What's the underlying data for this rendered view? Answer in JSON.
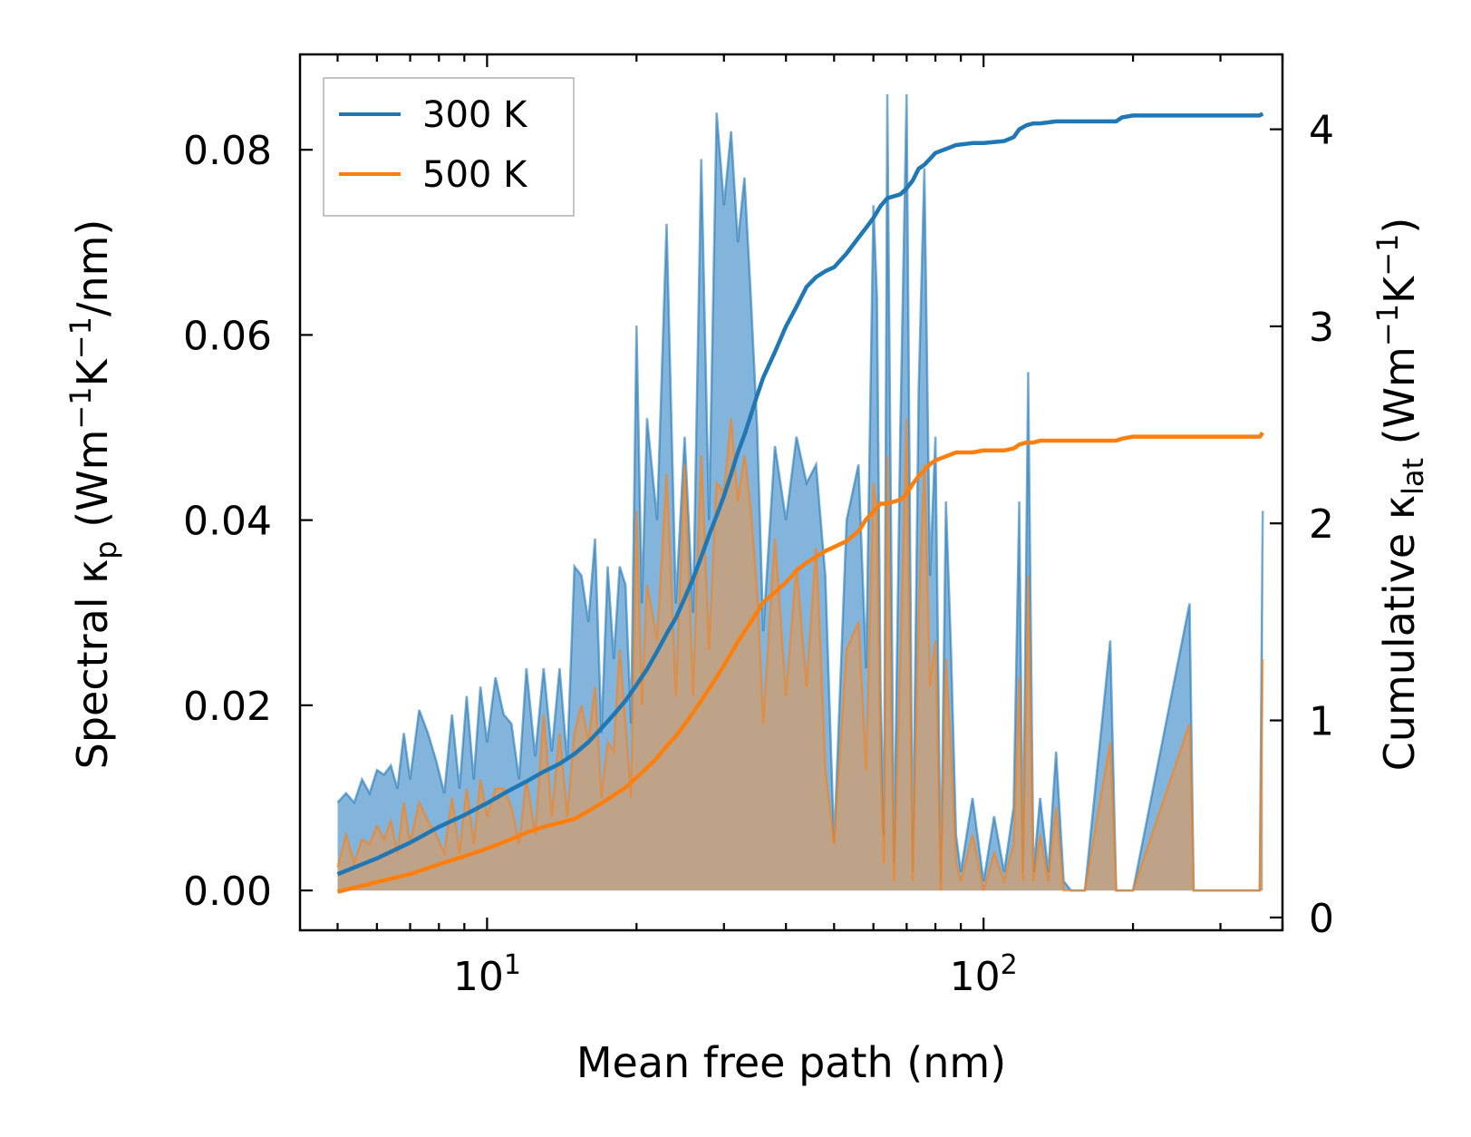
{
  "chart_data": {
    "type": "line",
    "xscale": "log",
    "x_range": [
      4.2,
      400
    ],
    "xlabel": "Mean free path (nm)",
    "x_tick_base": "10",
    "x_ticks": [
      {
        "value": 10,
        "exp": "1"
      },
      {
        "value": 100,
        "exp": "2"
      }
    ],
    "y_left": {
      "label_parts": {
        "pre": "Spectral κ",
        "sub": "p",
        "mid": " (Wm",
        "sup1": "−1",
        "mid2": "K",
        "sup2": "−1",
        "post": "/nm)"
      },
      "range": [
        -0.0043,
        0.0903
      ],
      "ticks": [
        "0.00",
        "0.02",
        "0.04",
        "0.06",
        "0.08"
      ],
      "tick_values": [
        0,
        0.02,
        0.04,
        0.06,
        0.08
      ]
    },
    "y_right": {
      "label_parts": {
        "pre": "Cumulative κ",
        "sub": "lat",
        "mid": " (Wm",
        "sup1": "−1",
        "mid2": "K",
        "sup2": "−1",
        "post": ")"
      },
      "range": [
        -0.065,
        4.38
      ],
      "ticks": [
        "0",
        "1",
        "2",
        "3",
        "4"
      ],
      "tick_values": [
        0,
        1,
        2,
        3,
        4
      ]
    },
    "legend": {
      "position": "upper-left",
      "entries": [
        "300 K",
        "500 K"
      ]
    },
    "colors": {
      "300K": "#1f77b4",
      "500K": "#ff7f0e",
      "fill300": "#5a9bd0",
      "fill500": "#caa07a"
    },
    "spectral_series": [
      {
        "name": "300 K",
        "x": [
          5.0,
          5.2,
          5.4,
          5.6,
          5.8,
          6.0,
          6.2,
          6.4,
          6.6,
          6.8,
          7.0,
          7.3,
          7.6,
          7.9,
          8.2,
          8.5,
          8.8,
          9.1,
          9.4,
          9.7,
          10.0,
          10.4,
          10.8,
          11.2,
          11.6,
          12.0,
          12.5,
          13.0,
          13.5,
          14.0,
          14.5,
          15.0,
          15.5,
          16.0,
          16.5,
          17.0,
          17.5,
          18.0,
          18.5,
          19.0,
          19.5,
          20.0,
          20.5,
          21.0,
          22.0,
          23.0,
          24.0,
          25.0,
          26.0,
          27.0,
          28.0,
          29.0,
          30.0,
          31.0,
          32.0,
          33.0,
          34.0,
          35.0,
          36.0,
          38.0,
          40.0,
          42.0,
          44.0,
          46.0,
          48.0,
          50.0,
          53.0,
          56.0,
          58.0,
          60.0,
          61.0,
          62.0,
          63.0,
          64.0,
          66.0,
          68.0,
          70.0,
          72.0,
          74.0,
          76.0,
          78.0,
          80.0,
          82.0,
          84.0,
          86.0,
          88.0,
          90.0,
          95.0,
          100.0,
          105.0,
          110.0,
          115.0,
          118.0,
          120.0,
          123.0,
          126.0,
          130.0,
          135.0,
          140.0,
          145.0,
          150.0,
          160.0,
          180.0,
          185.0,
          190.0,
          200.0,
          260.0,
          265.0,
          270.0,
          290.0,
          330.0,
          360.0,
          365.0
        ],
        "values": [
          0.0095,
          0.0105,
          0.0095,
          0.012,
          0.0105,
          0.013,
          0.0125,
          0.0135,
          0.011,
          0.017,
          0.012,
          0.0195,
          0.017,
          0.014,
          0.0105,
          0.019,
          0.011,
          0.021,
          0.012,
          0.022,
          0.016,
          0.023,
          0.019,
          0.018,
          0.012,
          0.024,
          0.0145,
          0.024,
          0.015,
          0.024,
          0.014,
          0.035,
          0.034,
          0.029,
          0.038,
          0.017,
          0.035,
          0.025,
          0.035,
          0.033,
          0.018,
          0.061,
          0.031,
          0.051,
          0.04,
          0.072,
          0.031,
          0.049,
          0.03,
          0.079,
          0.04,
          0.084,
          0.074,
          0.082,
          0.07,
          0.077,
          0.064,
          0.05,
          0.028,
          0.048,
          0.04,
          0.049,
          0.044,
          0.046,
          0.034,
          0.005,
          0.04,
          0.046,
          0.024,
          0.074,
          0.064,
          0.022,
          0.006,
          0.086,
          0.003,
          0.05,
          0.086,
          0.002,
          0.054,
          0.078,
          0.034,
          0.049,
          0.001,
          0.042,
          0.026,
          0.006,
          0.002,
          0.01,
          0.001,
          0.008,
          0.002,
          0.009,
          0.042,
          0.002,
          0.056,
          0.002,
          0.01,
          0.002,
          0.015,
          0.001,
          0.0,
          0.0,
          0.027,
          0.0,
          0.0,
          0.0,
          0.031,
          0.0,
          0.0,
          0.0,
          0.0,
          0.0,
          0.041
        ]
      },
      {
        "name": "500 K",
        "x": [
          5.0,
          5.2,
          5.4,
          5.6,
          5.8,
          6.0,
          6.2,
          6.4,
          6.6,
          6.8,
          7.0,
          7.3,
          7.6,
          7.9,
          8.2,
          8.5,
          8.8,
          9.1,
          9.4,
          9.7,
          10.0,
          10.4,
          10.8,
          11.2,
          11.6,
          12.0,
          12.5,
          13.0,
          13.5,
          14.0,
          14.5,
          15.0,
          15.5,
          16.0,
          16.5,
          17.0,
          17.5,
          18.0,
          18.5,
          19.0,
          19.5,
          20.0,
          20.5,
          21.0,
          22.0,
          23.0,
          24.0,
          25.0,
          26.0,
          27.0,
          28.0,
          29.0,
          30.0,
          31.0,
          32.0,
          33.0,
          34.0,
          35.0,
          36.0,
          38.0,
          40.0,
          42.0,
          44.0,
          46.0,
          48.0,
          50.0,
          53.0,
          56.0,
          58.0,
          60.0,
          61.0,
          62.0,
          63.0,
          64.0,
          66.0,
          68.0,
          70.0,
          72.0,
          74.0,
          76.0,
          78.0,
          80.0,
          82.0,
          84.0,
          86.0,
          88.0,
          90.0,
          95.0,
          100.0,
          105.0,
          110.0,
          115.0,
          118.0,
          120.0,
          123.0,
          126.0,
          130.0,
          135.0,
          140.0,
          145.0,
          150.0,
          160.0,
          180.0,
          185.0,
          190.0,
          200.0,
          260.0,
          265.0,
          270.0,
          290.0,
          330.0,
          360.0,
          365.0
        ],
        "values": [
          0.0025,
          0.006,
          0.003,
          0.0055,
          0.005,
          0.007,
          0.0055,
          0.0075,
          0.004,
          0.0095,
          0.005,
          0.0095,
          0.0075,
          0.006,
          0.004,
          0.01,
          0.004,
          0.011,
          0.005,
          0.012,
          0.008,
          0.011,
          0.011,
          0.009,
          0.005,
          0.012,
          0.006,
          0.019,
          0.008,
          0.017,
          0.008,
          0.017,
          0.02,
          0.016,
          0.022,
          0.01,
          0.016,
          0.015,
          0.026,
          0.018,
          0.01,
          0.041,
          0.02,
          0.033,
          0.027,
          0.045,
          0.021,
          0.046,
          0.021,
          0.047,
          0.026,
          0.044,
          0.043,
          0.051,
          0.042,
          0.047,
          0.041,
          0.032,
          0.018,
          0.038,
          0.021,
          0.035,
          0.022,
          0.037,
          0.013,
          0.005,
          0.026,
          0.029,
          0.013,
          0.044,
          0.041,
          0.013,
          0.003,
          0.047,
          0.001,
          0.025,
          0.051,
          0.001,
          0.03,
          0.046,
          0.022,
          0.027,
          0.0,
          0.025,
          0.015,
          0.003,
          0.001,
          0.006,
          0.0,
          0.004,
          0.001,
          0.005,
          0.023,
          0.001,
          0.034,
          0.001,
          0.006,
          0.001,
          0.009,
          0.0,
          0.0,
          0.0,
          0.016,
          0.0,
          0.0,
          0.0,
          0.018,
          0.0,
          0.0,
          0.0,
          0.0,
          0.0,
          0.025
        ]
      }
    ],
    "cumulative_series": [
      {
        "name": "300 K",
        "x": [
          5.0,
          6.0,
          7.0,
          8.0,
          9.0,
          10.0,
          11.0,
          12.0,
          13.0,
          14.0,
          15.0,
          16.0,
          17.0,
          18.0,
          19.0,
          20.0,
          21.0,
          22.0,
          23.0,
          24.0,
          25.0,
          26.0,
          27.0,
          28.0,
          29.0,
          30.0,
          31.0,
          32.0,
          33.0,
          34.0,
          35.0,
          36.0,
          38.0,
          40.0,
          42.0,
          44.0,
          46.0,
          48.0,
          50.0,
          53.0,
          56.0,
          58.0,
          60.0,
          62.0,
          64.0,
          68.0,
          70.0,
          72.0,
          74.0,
          76.0,
          78.0,
          80.0,
          84.0,
          88.0,
          95.0,
          100.0,
          110.0,
          115.0,
          118.0,
          122.0,
          126.0,
          130.0,
          140.0,
          150.0,
          185.0,
          190.0,
          200.0,
          265.0,
          300.0,
          360.0,
          365.0
        ],
        "values": [
          0.22,
          0.3,
          0.38,
          0.46,
          0.52,
          0.58,
          0.64,
          0.69,
          0.74,
          0.78,
          0.83,
          0.89,
          0.96,
          1.03,
          1.1,
          1.18,
          1.26,
          1.35,
          1.44,
          1.52,
          1.62,
          1.72,
          1.83,
          1.94,
          2.04,
          2.14,
          2.25,
          2.36,
          2.45,
          2.55,
          2.65,
          2.74,
          2.87,
          3.0,
          3.1,
          3.2,
          3.25,
          3.28,
          3.3,
          3.37,
          3.45,
          3.5,
          3.55,
          3.61,
          3.65,
          3.67,
          3.7,
          3.74,
          3.8,
          3.82,
          3.85,
          3.88,
          3.9,
          3.92,
          3.93,
          3.93,
          3.94,
          3.96,
          4.0,
          4.02,
          4.03,
          4.03,
          4.04,
          4.04,
          4.04,
          4.06,
          4.07,
          4.07,
          4.07,
          4.07,
          4.08
        ]
      },
      {
        "name": "500 K",
        "x": [
          5.0,
          6.0,
          7.0,
          8.0,
          9.0,
          10.0,
          11.0,
          12.0,
          13.0,
          14.0,
          15.0,
          16.0,
          17.0,
          18.0,
          19.0,
          20.0,
          21.0,
          22.0,
          23.0,
          24.0,
          25.0,
          26.0,
          27.0,
          28.0,
          29.0,
          30.0,
          31.0,
          32.0,
          33.0,
          34.0,
          35.0,
          36.0,
          38.0,
          40.0,
          42.0,
          44.0,
          46.0,
          48.0,
          50.0,
          53.0,
          56.0,
          58.0,
          60.0,
          62.0,
          64.0,
          68.0,
          70.0,
          72.0,
          74.0,
          76.0,
          78.0,
          80.0,
          84.0,
          88.0,
          95.0,
          100.0,
          110.0,
          115.0,
          118.0,
          122.0,
          126.0,
          130.0,
          140.0,
          150.0,
          185.0,
          190.0,
          200.0,
          265.0,
          300.0,
          360.0,
          365.0
        ],
        "values": [
          0.13,
          0.18,
          0.22,
          0.27,
          0.31,
          0.35,
          0.39,
          0.43,
          0.46,
          0.48,
          0.5,
          0.54,
          0.58,
          0.62,
          0.66,
          0.71,
          0.76,
          0.81,
          0.87,
          0.92,
          0.98,
          1.04,
          1.1,
          1.16,
          1.22,
          1.28,
          1.34,
          1.4,
          1.45,
          1.5,
          1.55,
          1.6,
          1.65,
          1.7,
          1.76,
          1.8,
          1.83,
          1.86,
          1.88,
          1.91,
          1.96,
          2.02,
          2.06,
          2.1,
          2.1,
          2.12,
          2.15,
          2.2,
          2.24,
          2.27,
          2.3,
          2.32,
          2.34,
          2.36,
          2.36,
          2.37,
          2.37,
          2.38,
          2.4,
          2.41,
          2.41,
          2.42,
          2.42,
          2.42,
          2.42,
          2.43,
          2.44,
          2.44,
          2.44,
          2.44,
          2.46
        ]
      }
    ]
  }
}
